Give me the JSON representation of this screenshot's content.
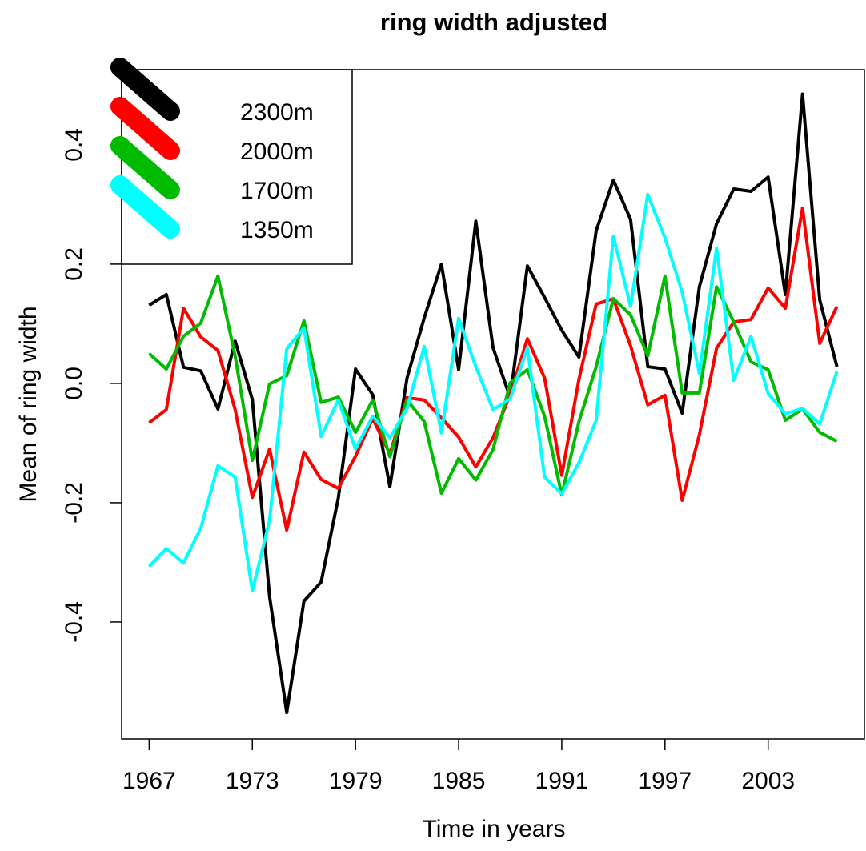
{
  "chart_data": {
    "type": "line",
    "title": "ring width adjusted",
    "x_label": "Time in years",
    "y_label": "Mean of ring width",
    "x": [
      1967,
      1968,
      1969,
      1970,
      1971,
      1972,
      1973,
      1974,
      1975,
      1976,
      1977,
      1978,
      1979,
      1980,
      1981,
      1982,
      1983,
      1984,
      1985,
      1986,
      1987,
      1988,
      1989,
      1990,
      1991,
      1992,
      1993,
      1994,
      1995,
      1996,
      1997,
      1998,
      1999,
      2000,
      2001,
      2002,
      2003,
      2004,
      2005,
      2006,
      2007
    ],
    "series": [
      {
        "name": "2300m",
        "color": "#000000",
        "values": [
          0.131,
          0.149,
          0.027,
          0.021,
          -0.043,
          0.071,
          -0.027,
          -0.357,
          -0.552,
          -0.365,
          -0.333,
          -0.192,
          0.024,
          -0.019,
          -0.173,
          0.009,
          0.11,
          0.2,
          0.023,
          0.272,
          0.06,
          -0.024,
          0.197,
          0.144,
          0.089,
          0.044,
          0.256,
          0.341,
          0.275,
          0.028,
          0.024,
          -0.05,
          0.162,
          0.268,
          0.326,
          0.322,
          0.346,
          0.149,
          0.485,
          0.14,
          0.028
        ]
      },
      {
        "name": "2000m",
        "color": "#ff0000",
        "values": [
          -0.066,
          -0.044,
          0.126,
          0.078,
          0.055,
          -0.044,
          -0.191,
          -0.11,
          -0.246,
          -0.115,
          -0.161,
          -0.176,
          -0.122,
          -0.059,
          -0.118,
          -0.024,
          -0.028,
          -0.058,
          -0.09,
          -0.14,
          -0.091,
          -0.019,
          0.075,
          0.009,
          -0.154,
          0.007,
          0.133,
          0.142,
          0.063,
          -0.036,
          -0.02,
          -0.196,
          -0.086,
          0.059,
          0.103,
          0.107,
          0.16,
          0.126,
          0.294,
          0.067,
          0.129
        ]
      },
      {
        "name": "1700m",
        "color": "#00bb00",
        "values": [
          0.05,
          0.024,
          0.079,
          0.101,
          0.18,
          0.046,
          -0.129,
          -0.001,
          0.013,
          0.105,
          -0.032,
          -0.023,
          -0.082,
          -0.028,
          -0.123,
          -0.028,
          -0.064,
          -0.184,
          -0.126,
          -0.162,
          -0.111,
          0.001,
          0.023,
          -0.055,
          -0.187,
          -0.064,
          0.028,
          0.142,
          0.115,
          0.046,
          0.18,
          -0.016,
          -0.016,
          0.162,
          0.103,
          0.036,
          0.023,
          -0.062,
          -0.043,
          -0.082,
          -0.097
        ]
      },
      {
        "name": "1350m",
        "color": "#00ffff",
        "values": [
          -0.307,
          -0.277,
          -0.301,
          -0.243,
          -0.138,
          -0.157,
          -0.348,
          -0.23,
          0.058,
          0.093,
          -0.089,
          -0.028,
          -0.11,
          -0.055,
          -0.091,
          -0.042,
          0.062,
          -0.083,
          0.109,
          0.028,
          -0.044,
          -0.026,
          0.06,
          -0.157,
          -0.185,
          -0.133,
          -0.062,
          0.247,
          0.129,
          0.317,
          0.244,
          0.153,
          0.017,
          0.227,
          0.005,
          0.079,
          -0.017,
          -0.051,
          -0.042,
          -0.068,
          0.02
        ]
      }
    ],
    "xlim": [
      1965.4,
      2008.6
    ],
    "ylim": [
      -0.596,
      0.526
    ],
    "xticks": [
      1967,
      1973,
      1979,
      1985,
      1991,
      1997,
      2003
    ],
    "yticks": [
      -0.4,
      -0.2,
      {
        "value": 0,
        "label": "0.0"
      },
      0.2,
      0.4
    ],
    "legend": "top-left"
  }
}
